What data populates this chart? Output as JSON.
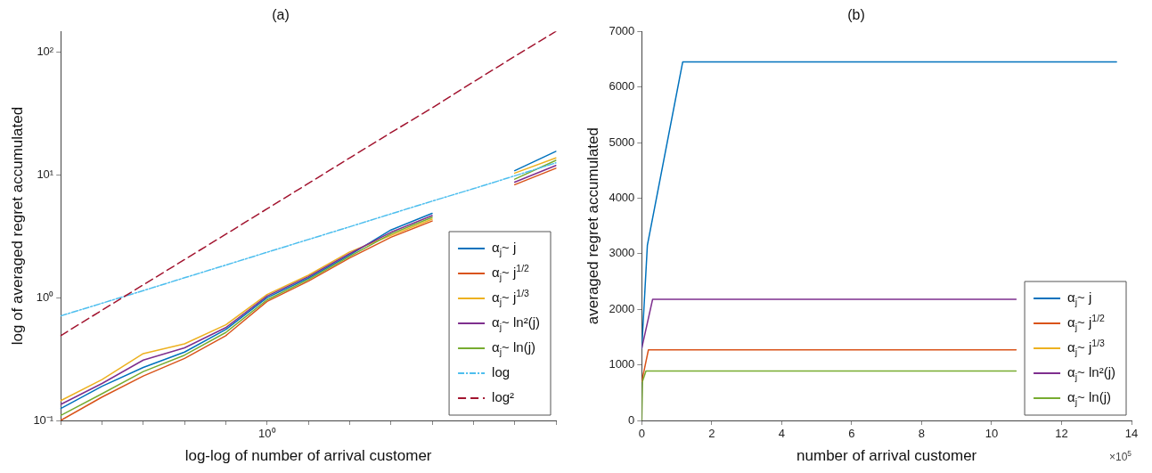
{
  "chart_data": [
    {
      "type": "line",
      "title": "(a)",
      "xlabel": "log-log of number of arrival customer",
      "ylabel": "log of averaged regret accumulated",
      "log": "y",
      "ylim": [
        0.1,
        147
      ],
      "categories": [
        null,
        null,
        null,
        null,
        null,
        "10⁰",
        null,
        null,
        null,
        null,
        null,
        null,
        null
      ],
      "yticks": [
        {
          "value": 0.1,
          "label": "10⁻¹"
        },
        {
          "value": 1,
          "label": "10⁰"
        },
        {
          "value": 10,
          "label": "10¹"
        },
        {
          "value": 100,
          "label": "10²"
        }
      ],
      "grid": false,
      "legend": "bottom right",
      "marker": "none",
      "series": [
        {
          "name": "α$_{j}$~ j",
          "color": "#0072bd",
          "values": [
            0.125,
            0.19,
            0.27,
            0.36,
            0.55,
            1.0,
            1.44,
            2.22,
            3.55,
            4.85,
            null,
            10.8,
            15.5
          ]
        },
        {
          "name": "α$_{j}$~ j$^{1/2}$",
          "color": "#d95319",
          "values": [
            0.1,
            0.155,
            0.23,
            0.32,
            0.49,
            0.93,
            1.36,
            2.1,
            3.1,
            4.2,
            null,
            8.3,
            11.3
          ]
        },
        {
          "name": "α$_{j}$~ j$^{1/3}$",
          "color": "#edb120",
          "values": [
            0.145,
            0.215,
            0.35,
            0.42,
            0.6,
            1.06,
            1.52,
            2.35,
            3.2,
            4.35,
            null,
            10.3,
            13.7
          ]
        },
        {
          "name": "α$_{j}$~ ln²(j)",
          "color": "#7e2f8e",
          "values": [
            0.135,
            0.2,
            0.31,
            0.39,
            0.57,
            1.03,
            1.48,
            2.28,
            3.4,
            4.65,
            null,
            8.7,
            11.9
          ]
        },
        {
          "name": "α$_{j}$~ ln(j)",
          "color": "#77ac30",
          "values": [
            0.11,
            0.165,
            0.25,
            0.34,
            0.52,
            0.96,
            1.4,
            2.16,
            3.3,
            4.5,
            null,
            9.2,
            13.1
          ]
        },
        {
          "name": "log",
          "color": "#4dbeee",
          "line_style": "dashdot",
          "values": [
            0.71,
            0.9,
            1.14,
            1.45,
            1.84,
            2.34,
            2.97,
            3.77,
            4.8,
            6.1,
            7.7,
            9.8,
            12.5
          ]
        },
        {
          "name": "log²",
          "color": "#a2142f",
          "line_style": "dashed",
          "values": [
            0.49,
            0.79,
            1.27,
            2.04,
            3.28,
            5.28,
            8.5,
            13.7,
            22,
            35,
            57,
            92,
            147
          ]
        }
      ]
    },
    {
      "type": "line",
      "title": "(b)",
      "xlabel": "number of arrival customer",
      "ylabel": "averaged regret accumulated",
      "xlim": [
        0,
        14
      ],
      "ylim": [
        0,
        7000
      ],
      "xticks": [
        0,
        2,
        4,
        6,
        8,
        10,
        12,
        14
      ],
      "yticks": [
        0,
        1000,
        2000,
        3000,
        4000,
        5000,
        6000,
        7000
      ],
      "grid": false,
      "legend": "bottom right",
      "marker": "none",
      "annotations": [
        "×10$^{5}$"
      ],
      "series": [
        {
          "name": "α$_{j}$~ j",
          "color": "#0072bd",
          "x": [
            0,
            0.16,
            1.17,
            13.57
          ],
          "values": [
            1300,
            3150,
            6450,
            6450
          ]
        },
        {
          "name": "α$_{j}$~ j$^{1/2}$",
          "color": "#d95319",
          "x": [
            0,
            0.19,
            10.7
          ],
          "values": [
            700,
            1270,
            1270
          ]
        },
        {
          "name": "α$_{j}$~ j$^{1/3}$",
          "color": "#edb120",
          "values": [
            null
          ]
        },
        {
          "name": "α$_{j}$~ ln²(j)",
          "color": "#7e2f8e",
          "x": [
            0,
            0.31,
            10.7
          ],
          "values": [
            1300,
            2180,
            2180
          ]
        },
        {
          "name": "α$_{j}$~ ln(j)",
          "color": "#77ac30",
          "x": [
            0,
            0.02,
            0.12,
            10.7
          ],
          "values": [
            0,
            700,
            890,
            890
          ]
        }
      ]
    }
  ]
}
